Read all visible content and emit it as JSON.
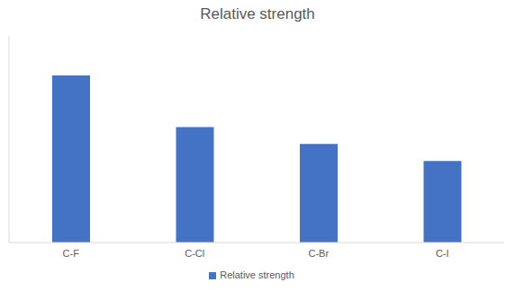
{
  "chart_data": {
    "type": "bar",
    "title": "Relative strength",
    "categories": [
      "C-F",
      "C-Cl",
      "C-Br",
      "C-I"
    ],
    "series": [
      {
        "name": "Relative strength",
        "color": "#4472c4",
        "values": [
          485,
          335,
          286,
          237
        ]
      }
    ],
    "ylim": [
      0,
      600
    ],
    "grid": false,
    "legend": "bottom",
    "tick_labels": "x"
  }
}
